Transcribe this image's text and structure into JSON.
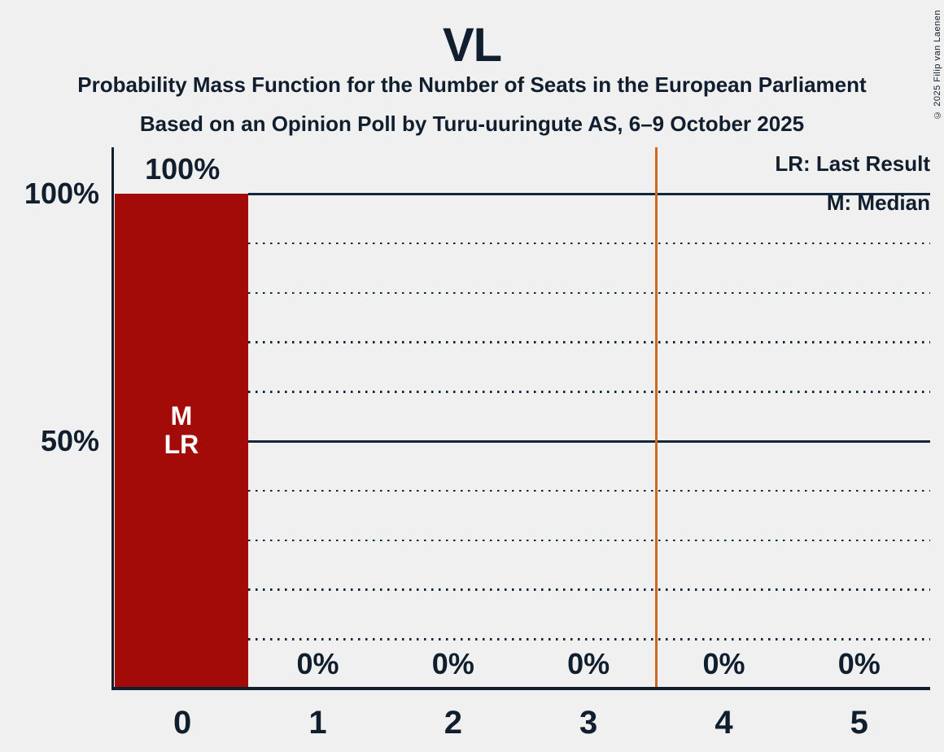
{
  "header": {
    "title": "VL",
    "subtitle": "Probability Mass Function for the Number of Seats in the European Parliament",
    "source_line": "Based on an Opinion Poll by Turu-uuringute AS, 6–9 October 2025",
    "copyright": "© 2025 Filip van Laenen"
  },
  "legend": {
    "last_result": "LR: Last Result",
    "median": "M: Median"
  },
  "colors": {
    "background": "#F0F0F0",
    "text": "#101E2D",
    "bar": "#A30B09",
    "bar_text": "#FFFFFF",
    "reference_line": "#CD691E",
    "gridline": "#15263A",
    "axis": "#101E2D"
  },
  "chart_data": {
    "type": "bar",
    "title": "VL",
    "categories": [
      "0",
      "1",
      "2",
      "3",
      "4",
      "5"
    ],
    "values": [
      100,
      0,
      0,
      0,
      0,
      0
    ],
    "value_labels": [
      "100%",
      "0%",
      "0%",
      "0%",
      "0%",
      "0%"
    ],
    "ylim": [
      0,
      100
    ],
    "y_ticks": [
      {
        "label": "100%",
        "value": 100
      },
      {
        "label": "50%",
        "value": 50
      }
    ],
    "solid_gridlines": [
      100,
      50
    ],
    "dotted_gridlines": [
      90,
      80,
      70,
      60,
      40,
      30,
      20,
      10
    ],
    "bar_annotations": {
      "category_index": 0,
      "lines": [
        "M",
        "LR"
      ]
    },
    "reference_line_x": 3.5,
    "legend_position": "top-right",
    "grid": "horizontal"
  }
}
